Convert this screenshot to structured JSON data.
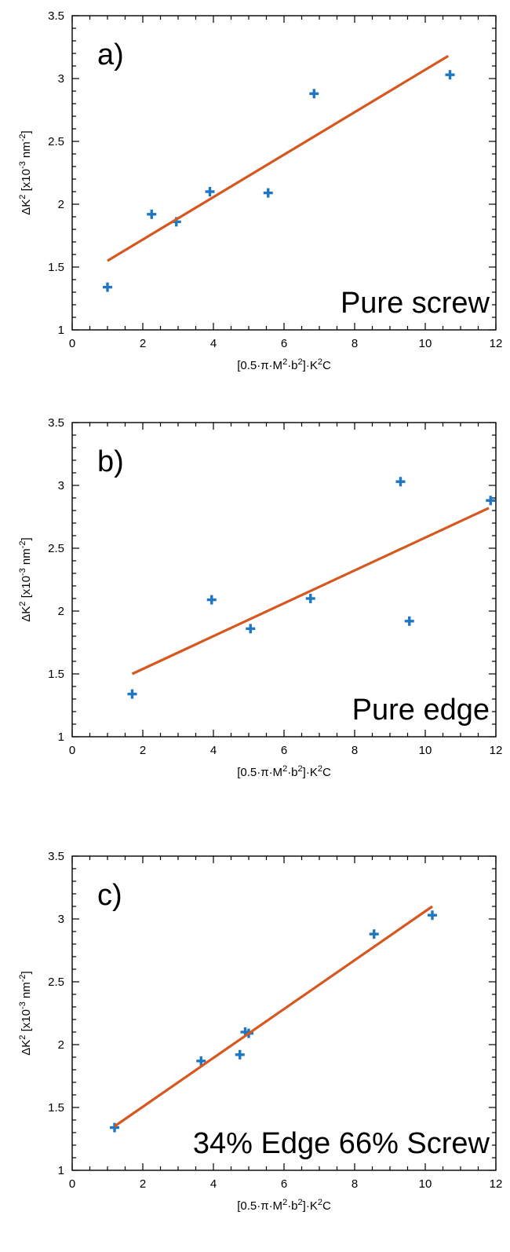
{
  "chart_data": [
    {
      "type": "scatter",
      "panel_label": "a)",
      "annotation": "Pure screw",
      "xlabel": "[0.5·π·M²·b²]·K²C",
      "ylabel": "ΔK² [x10⁻³ nm⁻²]",
      "xlim": [
        0,
        12
      ],
      "ylim": [
        1,
        3.5
      ],
      "xticks": [
        "0",
        "2",
        "4",
        "6",
        "8",
        "10",
        "12"
      ],
      "yticks": [
        "1",
        "1.5",
        "2",
        "2.5",
        "3",
        "3.5"
      ],
      "grid": false,
      "series": [
        {
          "type": "scatter",
          "color": "#1f77c4",
          "marker": "plus",
          "points": [
            [
              1.0,
              1.34
            ],
            [
              2.25,
              1.92
            ],
            [
              2.95,
              1.86
            ],
            [
              3.9,
              2.1
            ],
            [
              5.55,
              2.09
            ],
            [
              6.85,
              2.88
            ],
            [
              10.7,
              3.03
            ]
          ]
        },
        {
          "type": "line",
          "color": "#d6581f",
          "points": [
            [
              1.0,
              1.55
            ],
            [
              10.65,
              3.18
            ]
          ]
        }
      ]
    },
    {
      "type": "scatter",
      "panel_label": "b)",
      "annotation": "Pure edge",
      "xlabel": "[0.5·π·M²·b²]·K²C",
      "ylabel": "ΔK² [x10⁻³ nm⁻²]",
      "xlim": [
        0,
        12
      ],
      "ylim": [
        1,
        3.5
      ],
      "xticks": [
        "0",
        "2",
        "4",
        "6",
        "8",
        "10",
        "12"
      ],
      "yticks": [
        "1",
        "1.5",
        "2",
        "2.5",
        "3",
        "3.5"
      ],
      "grid": false,
      "series": [
        {
          "type": "scatter",
          "color": "#1f77c4",
          "marker": "plus",
          "points": [
            [
              1.7,
              1.34
            ],
            [
              3.95,
              2.09
            ],
            [
              5.05,
              1.86
            ],
            [
              6.75,
              2.1
            ],
            [
              9.3,
              3.03
            ],
            [
              9.55,
              1.92
            ],
            [
              11.85,
              2.88
            ]
          ]
        },
        {
          "type": "line",
          "color": "#d6581f",
          "points": [
            [
              1.7,
              1.5
            ],
            [
              11.8,
              2.82
            ]
          ]
        }
      ]
    },
    {
      "type": "scatter",
      "panel_label": "c)",
      "annotation": "34% Edge 66% Screw",
      "xlabel": "[0.5·π·M²·b²]·K²C",
      "ylabel": "ΔK² [x10⁻³ nm⁻²]",
      "xlim": [
        0,
        12
      ],
      "ylim": [
        1,
        3.5
      ],
      "xticks": [
        "0",
        "2",
        "4",
        "6",
        "8",
        "10",
        "12"
      ],
      "yticks": [
        "1",
        "1.5",
        "2",
        "2.5",
        "3",
        "3.5"
      ],
      "grid": false,
      "series": [
        {
          "type": "scatter",
          "color": "#1f77c4",
          "marker": "plus",
          "points": [
            [
              1.2,
              1.34
            ],
            [
              3.65,
              1.87
            ],
            [
              4.75,
              1.92
            ],
            [
              4.9,
              2.1
            ],
            [
              5.0,
              2.09
            ],
            [
              8.55,
              2.88
            ],
            [
              10.2,
              3.03
            ]
          ]
        },
        {
          "type": "line",
          "color": "#d6581f",
          "points": [
            [
              1.2,
              1.35
            ],
            [
              10.2,
              3.1
            ]
          ]
        }
      ]
    }
  ]
}
